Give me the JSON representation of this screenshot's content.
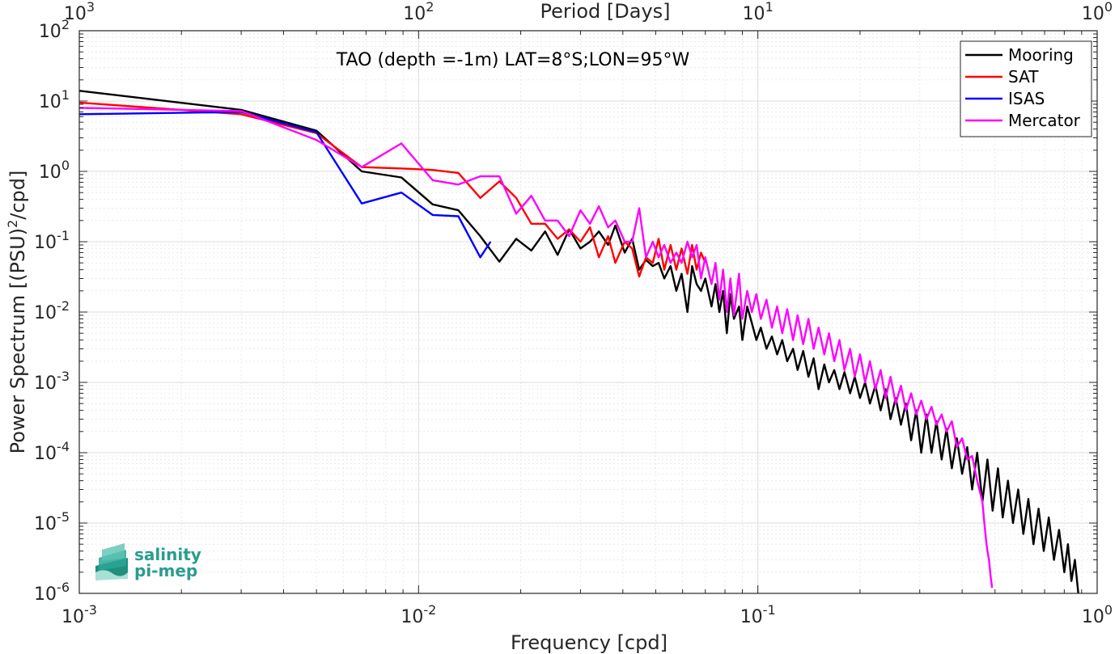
{
  "chart_data": {
    "type": "line",
    "title": "TAO (depth =-1m) LAT=8°S;LON=95°W",
    "xlabel": "Frequency [cpd]",
    "ylabel": "Power Spectrum [(PSU)²/cpd]",
    "x2label": "Period [Days]",
    "xscale": "log",
    "yscale": "log",
    "xlim": [
      0.001,
      1
    ],
    "ylim": [
      1e-06,
      100
    ],
    "grid": true,
    "legend_position": "top-right",
    "x_ticks": [
      {
        "base": "10",
        "exp": "-3"
      },
      {
        "base": "10",
        "exp": "-2"
      },
      {
        "base": "10",
        "exp": "-1"
      },
      {
        "base": "10",
        "exp": "0"
      }
    ],
    "x2_ticks": [
      {
        "base": "10",
        "exp": "3"
      },
      {
        "base": "10",
        "exp": "2"
      },
      {
        "base": "10",
        "exp": "1"
      },
      {
        "base": "10",
        "exp": "0"
      }
    ],
    "y_ticks": [
      {
        "base": "10",
        "exp": "-6"
      },
      {
        "base": "10",
        "exp": "-5"
      },
      {
        "base": "10",
        "exp": "-4"
      },
      {
        "base": "10",
        "exp": "-3"
      },
      {
        "base": "10",
        "exp": "-2"
      },
      {
        "base": "10",
        "exp": "-1"
      },
      {
        "base": "10",
        "exp": "0"
      },
      {
        "base": "10",
        "exp": "1"
      },
      {
        "base": "10",
        "exp": "2"
      }
    ],
    "series": [
      {
        "name": "Mooring",
        "color": "#000000",
        "x": [
          0.001,
          0.003,
          0.005,
          0.0068,
          0.0089,
          0.011,
          0.0131,
          0.0152,
          0.0173,
          0.0194,
          0.0215,
          0.0236,
          0.0257,
          0.0278,
          0.03,
          0.032,
          0.034,
          0.0362,
          0.038,
          0.0405,
          0.0426,
          0.0447,
          0.0468,
          0.049,
          0.051,
          0.053,
          0.0553,
          0.0575,
          0.0596,
          0.062,
          0.064,
          0.066,
          0.068,
          0.07,
          0.073,
          0.075,
          0.077,
          0.079,
          0.081,
          0.083,
          0.085,
          0.088,
          0.09,
          0.093,
          0.096,
          0.099,
          0.102,
          0.106,
          0.11,
          0.114,
          0.118,
          0.122,
          0.127,
          0.131,
          0.136,
          0.141,
          0.146,
          0.151,
          0.157,
          0.162,
          0.168,
          0.174,
          0.18,
          0.187,
          0.193,
          0.2,
          0.207,
          0.214,
          0.222,
          0.23,
          0.238,
          0.246,
          0.255,
          0.264,
          0.273,
          0.283,
          0.293,
          0.303,
          0.314,
          0.325,
          0.336,
          0.348,
          0.36,
          0.373,
          0.386,
          0.4,
          0.414,
          0.428,
          0.443,
          0.459,
          0.475,
          0.492,
          0.51,
          0.527,
          0.546,
          0.565,
          0.585,
          0.606,
          0.627,
          0.649,
          0.672,
          0.696,
          0.72,
          0.746,
          0.772,
          0.8,
          0.82,
          0.84,
          0.86,
          0.88
        ],
        "values": [
          14,
          7.5,
          3.8,
          1.0,
          0.82,
          0.34,
          0.28,
          0.12,
          0.052,
          0.11,
          0.075,
          0.14,
          0.065,
          0.15,
          0.08,
          0.1,
          0.14,
          0.09,
          0.17,
          0.07,
          0.11,
          0.04,
          0.055,
          0.045,
          0.05,
          0.03,
          0.045,
          0.02,
          0.035,
          0.01,
          0.045,
          0.025,
          0.02,
          0.03,
          0.012,
          0.025,
          0.01,
          0.02,
          0.005,
          0.018,
          0.008,
          0.012,
          0.004,
          0.012,
          0.007,
          0.004,
          0.006,
          0.003,
          0.0045,
          0.0025,
          0.004,
          0.002,
          0.003,
          0.0015,
          0.0028,
          0.0012,
          0.0022,
          0.0008,
          0.0018,
          0.001,
          0.0015,
          0.0008,
          0.0014,
          0.0007,
          0.0012,
          0.0006,
          0.001,
          0.0005,
          0.0009,
          0.0004,
          0.0008,
          0.0003,
          0.0006,
          0.00025,
          0.0005,
          0.00015,
          0.0004,
          0.0001,
          0.00035,
          0.0001,
          0.00028,
          8e-05,
          0.00022,
          6e-05,
          0.00016,
          5e-05,
          0.00012,
          3e-05,
          0.0001,
          2e-05,
          8e-05,
          1.5e-05,
          6e-05,
          1.2e-05,
          4e-05,
          1e-05,
          3e-05,
          7e-06,
          2.2e-05,
          5e-06,
          1.6e-05,
          4e-06,
          1.2e-05,
          3e-06,
          8e-06,
          2e-06,
          5e-06,
          1.5e-06,
          3e-06,
          1e-06
        ]
      },
      {
        "name": "SAT",
        "color": "#ff0000",
        "x": [
          0.001,
          0.003,
          0.005,
          0.0068,
          0.0089,
          0.011,
          0.0131,
          0.0152,
          0.0173,
          0.0194,
          0.0215,
          0.0236,
          0.0257,
          0.0278,
          0.03,
          0.032,
          0.034,
          0.0362,
          0.038,
          0.0405,
          0.0426,
          0.0447,
          0.0468,
          0.049,
          0.051,
          0.053,
          0.0553,
          0.0575,
          0.0596,
          0.062,
          0.064,
          0.066,
          0.068,
          0.07
        ],
        "values": [
          9.5,
          6.5,
          3.5,
          1.15,
          1.1,
          1.05,
          0.95,
          0.42,
          0.72,
          0.42,
          0.18,
          0.18,
          0.11,
          0.15,
          0.1,
          0.16,
          0.06,
          0.12,
          0.05,
          0.1,
          0.08,
          0.032,
          0.06,
          0.05,
          0.11,
          0.04,
          0.09,
          0.04,
          0.08,
          0.035,
          0.09,
          0.04,
          0.07,
          0.05
        ]
      },
      {
        "name": "ISAS",
        "color": "#0000ff",
        "x": [
          0.001,
          0.003,
          0.005,
          0.0068,
          0.0089,
          0.011,
          0.0131,
          0.0152,
          0.0163
        ],
        "values": [
          6.5,
          7.0,
          3.6,
          0.35,
          0.5,
          0.24,
          0.23,
          0.06,
          0.1
        ]
      },
      {
        "name": "Mercator",
        "color": "#ff00ff",
        "x": [
          0.001,
          0.003,
          0.005,
          0.0068,
          0.0089,
          0.011,
          0.0131,
          0.0152,
          0.0173,
          0.0194,
          0.0215,
          0.0236,
          0.0257,
          0.0278,
          0.03,
          0.032,
          0.034,
          0.0362,
          0.038,
          0.0405,
          0.0426,
          0.0447,
          0.0468,
          0.049,
          0.051,
          0.053,
          0.0553,
          0.0575,
          0.0596,
          0.062,
          0.064,
          0.066,
          0.068,
          0.07,
          0.073,
          0.075,
          0.077,
          0.079,
          0.081,
          0.083,
          0.085,
          0.088,
          0.09,
          0.093,
          0.096,
          0.099,
          0.102,
          0.106,
          0.11,
          0.114,
          0.118,
          0.122,
          0.127,
          0.131,
          0.136,
          0.141,
          0.146,
          0.151,
          0.157,
          0.162,
          0.168,
          0.174,
          0.18,
          0.187,
          0.193,
          0.2,
          0.207,
          0.214,
          0.222,
          0.23,
          0.238,
          0.246,
          0.255,
          0.264,
          0.273,
          0.283,
          0.293,
          0.303,
          0.314,
          0.325,
          0.336,
          0.348,
          0.36,
          0.373,
          0.386,
          0.4,
          0.414,
          0.428,
          0.443,
          0.459,
          0.465,
          0.47,
          0.475,
          0.48,
          0.485,
          0.49
        ],
        "values": [
          8,
          7.2,
          2.8,
          1.15,
          2.5,
          0.75,
          0.65,
          0.85,
          0.85,
          0.25,
          0.45,
          0.2,
          0.2,
          0.12,
          0.28,
          0.18,
          0.32,
          0.16,
          0.2,
          0.1,
          0.1,
          0.3,
          0.06,
          0.1,
          0.06,
          0.09,
          0.05,
          0.07,
          0.05,
          0.1,
          0.06,
          0.09,
          0.03,
          0.06,
          0.025,
          0.05,
          0.015,
          0.04,
          0.01,
          0.03,
          0.009,
          0.035,
          0.008,
          0.02,
          0.01,
          0.018,
          0.008,
          0.015,
          0.006,
          0.012,
          0.005,
          0.011,
          0.004,
          0.009,
          0.0035,
          0.008,
          0.003,
          0.006,
          0.0025,
          0.005,
          0.002,
          0.004,
          0.0015,
          0.003,
          0.0012,
          0.0025,
          0.001,
          0.002,
          0.0008,
          0.0015,
          0.0006,
          0.0012,
          0.0005,
          0.0009,
          0.0004,
          0.0007,
          0.00035,
          0.00055,
          0.0003,
          0.00045,
          0.00025,
          0.00035,
          0.0002,
          0.00028,
          0.00012,
          0.00016,
          8e-05,
          9e-05,
          4e-05,
          2e-05,
          1e-05,
          6e-06,
          4e-06,
          3e-06,
          1.8e-06,
          1.2e-06
        ]
      }
    ]
  },
  "logo": {
    "line1": "salinity",
    "line2": "pi-mep",
    "color": "#2a9d8f"
  }
}
